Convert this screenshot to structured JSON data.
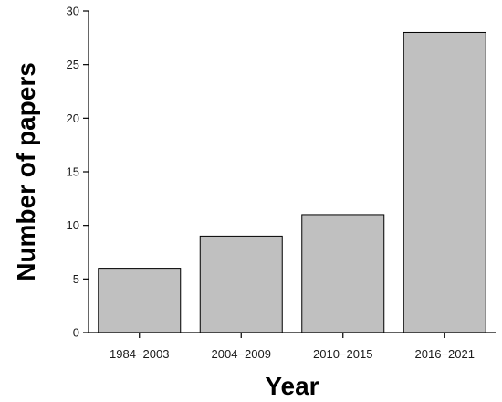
{
  "chart_data": {
    "type": "bar",
    "categories": [
      "1984−2003",
      "2004−2009",
      "2010−2015",
      "2016−2021"
    ],
    "values": [
      6,
      9,
      11,
      28
    ],
    "title": "",
    "xlabel": "Year",
    "ylabel": "Number of papers",
    "ylim": [
      0,
      30
    ],
    "yticks": [
      0,
      5,
      10,
      15,
      20,
      25,
      30
    ],
    "grid": false,
    "legend": "none",
    "bar_color": "#c0c0c0",
    "edge_color": "#000000"
  }
}
